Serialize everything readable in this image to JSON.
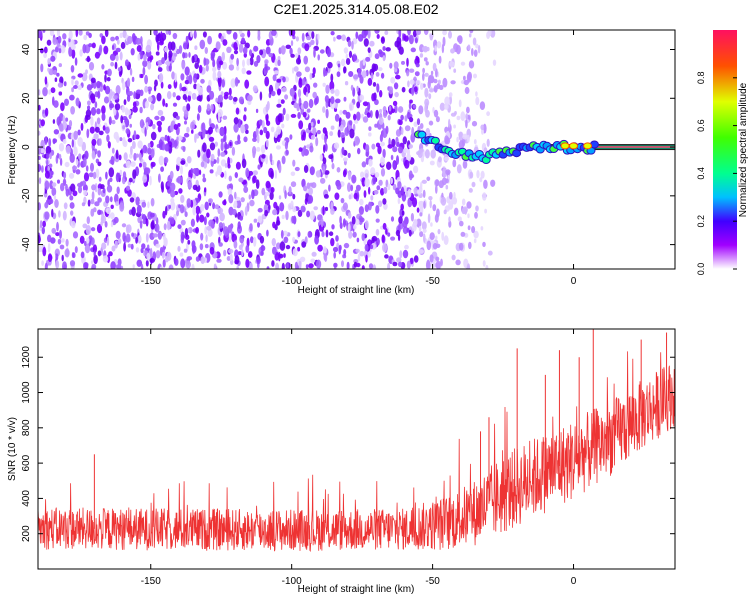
{
  "title": "C2E1.2025.314.05.08.E02",
  "chart_data": [
    {
      "type": "heatmap",
      "title": "C2E1.2025.314.05.08.E02",
      "xlabel": "Height of straight line (km)",
      "ylabel": "Frequency (Hz)",
      "xlim": [
        -190,
        36
      ],
      "ylim": [
        -50,
        48
      ],
      "x_ticks": [
        -150,
        -100,
        -50,
        0
      ],
      "y_ticks": [
        -40,
        -20,
        0,
        20,
        40
      ],
      "noise_extent_km": [
        -190,
        -28
      ],
      "tone_frequency_hz": 0,
      "tone_start_km": -55,
      "tone_drift": [
        {
          "x": -55,
          "y": 5
        },
        {
          "x": -50,
          "y": 2
        },
        {
          "x": -45,
          "y": -1
        },
        {
          "x": -40,
          "y": -3
        },
        {
          "x": -35,
          "y": -4
        },
        {
          "x": -30,
          "y": -4
        },
        {
          "x": -25,
          "y": -2
        },
        {
          "x": -20,
          "y": -1
        },
        {
          "x": -10,
          "y": 0
        },
        {
          "x": 0,
          "y": 0
        },
        {
          "x": 36,
          "y": 0
        }
      ],
      "colorbar": {
        "label": "Normalized spectral amplitude",
        "range": [
          0.0,
          1.0
        ],
        "ticks": [
          0.0,
          0.2,
          0.4,
          0.6,
          0.8
        ]
      }
    },
    {
      "type": "line",
      "xlabel": "Height of straight line (km)",
      "ylabel": "SNR (10 * v/v)",
      "xlim": [
        -190,
        36
      ],
      "ylim": [
        0,
        1360
      ],
      "x_ticks": [
        -150,
        -100,
        -50,
        0
      ],
      "y_ticks": [
        200,
        400,
        600,
        800,
        1000,
        1200
      ],
      "color": "#ee3333",
      "trend": [
        {
          "x": -190,
          "y": 230
        },
        {
          "x": -150,
          "y": 225
        },
        {
          "x": -100,
          "y": 220
        },
        {
          "x": -60,
          "y": 225
        },
        {
          "x": -45,
          "y": 260
        },
        {
          "x": -35,
          "y": 320
        },
        {
          "x": -25,
          "y": 420
        },
        {
          "x": -15,
          "y": 510
        },
        {
          "x": 0,
          "y": 620
        },
        {
          "x": 15,
          "y": 760
        },
        {
          "x": 25,
          "y": 880
        },
        {
          "x": 36,
          "y": 1000
        }
      ],
      "spread": [
        {
          "x": -190,
          "y": 120
        },
        {
          "x": -60,
          "y": 120
        },
        {
          "x": -40,
          "y": 170
        },
        {
          "x": -25,
          "y": 230
        },
        {
          "x": 0,
          "y": 230
        },
        {
          "x": 36,
          "y": 190
        }
      ],
      "peaks": [
        {
          "x": -170,
          "y": 650
        },
        {
          "x": -33,
          "y": 780
        },
        {
          "x": -30,
          "y": 860
        },
        {
          "x": -20,
          "y": 1250
        },
        {
          "x": -10,
          "y": 1100
        },
        {
          "x": -5,
          "y": 1240
        },
        {
          "x": 2,
          "y": 1200
        },
        {
          "x": 7,
          "y": 1360
        },
        {
          "x": 24,
          "y": 1300
        },
        {
          "x": 33,
          "y": 1340
        }
      ]
    }
  ]
}
